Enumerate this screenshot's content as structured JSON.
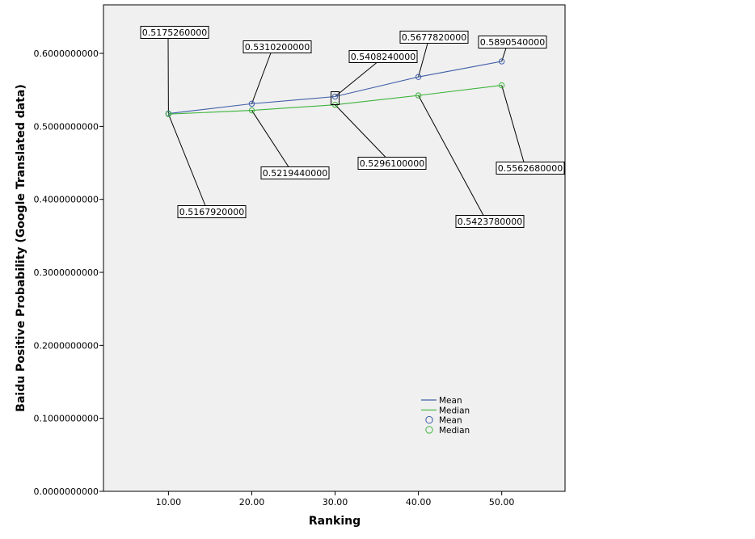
{
  "chart_data": {
    "type": "line",
    "xlabel": "Ranking",
    "ylabel": "Baidu Positive Probability (Google Translated data)",
    "x": [
      10,
      20,
      30,
      40,
      50
    ],
    "x_tick_labels": [
      "10.00",
      "20.00",
      "30.00",
      "40.00",
      "50.00"
    ],
    "xlim": [
      2.2,
      57.6
    ],
    "y_ticks": [
      0.0,
      0.1,
      0.2,
      0.3,
      0.4,
      0.5,
      0.6
    ],
    "y_tick_labels": [
      "0.0000000000",
      "0.1000000000",
      "0.2000000000",
      "0.3000000000",
      "0.4000000000",
      "0.5000000000",
      "0.6000000000"
    ],
    "ylim": [
      0.0,
      0.6665
    ],
    "grid": false,
    "background": "#f0f0f0",
    "series": [
      {
        "name": "Mean",
        "color": "#3f5fa8",
        "values": [
          0.517526,
          0.53102,
          0.540824,
          0.567782,
          0.589054
        ],
        "labels": [
          "0.5175260000",
          "0.5310200000",
          "0.5408240000",
          "0.5677820000",
          "0.5890540000"
        ]
      },
      {
        "name": "Median",
        "color": "#3cb43c",
        "values": [
          0.516792,
          0.521944,
          0.52961,
          0.542378,
          0.556268
        ],
        "labels": [
          "0.5167920000",
          "0.5219440000",
          "0.5296100000",
          "0.5423780000",
          "0.5562680000"
        ]
      }
    ],
    "legend": {
      "position": "bottom-right",
      "entries": [
        {
          "label": "Mean",
          "kind": "line",
          "series": 0
        },
        {
          "label": "Median",
          "kind": "line",
          "series": 1
        },
        {
          "label": "Mean",
          "kind": "marker",
          "series": 0
        },
        {
          "label": "Median",
          "kind": "marker",
          "series": 1
        }
      ]
    }
  }
}
